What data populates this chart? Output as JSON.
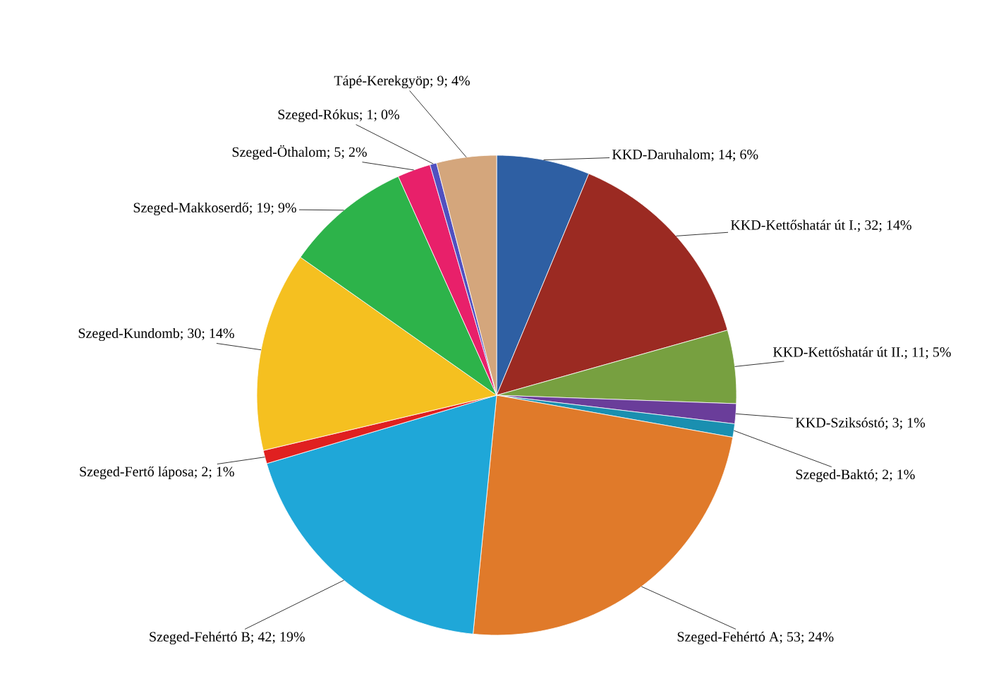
{
  "chart_data": {
    "type": "pie",
    "categories": [
      "KKD-Daruhalom",
      "KKD-Kettőshatár út I.",
      "KKD-Kettőshatár út II.",
      "KKD-Sziksóstó",
      "Szeged-Baktó",
      "Szeged-Fehértó A",
      "Szeged-Fehértó B",
      "Szeged-Fertő láposa",
      "Szeged-Kundomb",
      "Szeged-Makkoserdő",
      "Szeged-Öthalom",
      "Szeged-Rókus",
      "Tápé-Kerekgyöp"
    ],
    "values": [
      14,
      32,
      11,
      3,
      2,
      53,
      42,
      2,
      30,
      19,
      5,
      1,
      9
    ],
    "value_labels": [
      "; 14; 6%",
      "; 32; 14%",
      "; 11; 5%",
      "; 3; 1%",
      "; 2; 1%",
      "; 53; 24%",
      "; 42; 19%",
      "; 2; 1%",
      "; 30; 14%",
      "; 19; 9%",
      "; 5; 2%",
      "; 1; 0%",
      "; 9; 4%"
    ],
    "colors": [
      "#2e5fa3",
      "#9b2a22",
      "#77a040",
      "#6a3d9a",
      "#1a8fb0",
      "#e07a2a",
      "#1fa7d8",
      "#e02020",
      "#f5c020",
      "#2db34a",
      "#e8206a",
      "#5050c0",
      "#d4a67c"
    ]
  }
}
